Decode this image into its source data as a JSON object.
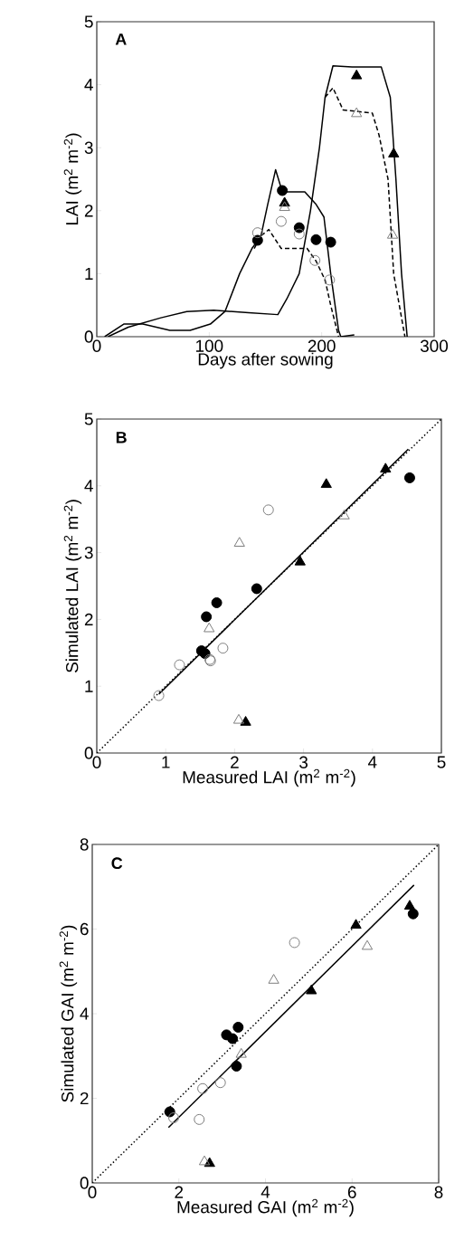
{
  "chart_data": [
    {
      "type": "line",
      "title": "A",
      "xlabel": "Days after sowing",
      "ylabel": "LAI (m$^{2}$ m$^{-2}$)",
      "xlim": [
        0,
        300
      ],
      "ylim": [
        0,
        5
      ],
      "xticks": [
        0,
        100,
        200,
        300
      ],
      "yticks": [
        0,
        1,
        2,
        3,
        4,
        5
      ],
      "series": [
        {
          "color": "#000000",
          "line_style": "solid",
          "marker": "none",
          "x": [
            7,
            24,
            41,
            65,
            83,
            101,
            114,
            127,
            138,
            146,
            152,
            159,
            165,
            185,
            195,
            202,
            208,
            215,
            217,
            229
          ],
          "values": [
            0,
            0.2,
            0.2,
            0.1,
            0.1,
            0.2,
            0.4,
            1.0,
            1.4,
            1.6,
            2.1,
            2.65,
            2.3,
            2.3,
            2.1,
            1.9,
            1.0,
            0.1,
            0,
            0.03
          ]
        },
        {
          "color": "#000000",
          "line_style": "dashed",
          "marker": "none",
          "x": [
            140,
            146,
            153,
            164,
            187,
            195,
            203,
            208,
            215
          ],
          "values": [
            1.4,
            1.6,
            1.7,
            1.4,
            1.4,
            1.2,
            0.9,
            0.5,
            0
          ]
        },
        {
          "color": "#000000",
          "line_style": "solid",
          "marker": "none",
          "x": [
            10,
            28,
            57,
            80,
            104,
            135,
            161,
            169,
            180,
            190,
            198,
            203,
            210,
            227,
            253,
            261,
            266,
            271,
            276
          ],
          "values": [
            0,
            0.15,
            0.3,
            0.4,
            0.42,
            0.38,
            0.35,
            0.6,
            1.0,
            2.0,
            3.0,
            3.8,
            4.3,
            4.28,
            4.28,
            3.8,
            2.5,
            1.0,
            0
          ]
        },
        {
          "color": "#000000",
          "line_style": "dashed",
          "marker": "none",
          "x": [
            203,
            210,
            219,
            245,
            251,
            259,
            264,
            274
          ],
          "values": [
            3.8,
            3.95,
            3.6,
            3.55,
            3.2,
            2.5,
            1.0,
            0
          ]
        },
        {
          "type": "scatter",
          "color": "#000000",
          "marker": "circle",
          "x": [
            143,
            165,
            180,
            195,
            208
          ],
          "values": [
            1.53,
            2.32,
            1.73,
            1.54,
            1.5
          ]
        },
        {
          "type": "scatter",
          "color": "#7f7f7f",
          "marker": "circle",
          "x": [
            143,
            164,
            180,
            194,
            207
          ],
          "values": [
            1.65,
            1.83,
            1.63,
            1.21,
            0.9
          ]
        },
        {
          "type": "scatter",
          "color": "#000000",
          "marker": "triangle",
          "x": [
            167,
            231,
            264
          ],
          "values": [
            2.12,
            4.14,
            2.9
          ]
        },
        {
          "type": "scatter",
          "color": "#7f7f7f",
          "marker": "triangle",
          "x": [
            167,
            231,
            263
          ],
          "values": [
            2.05,
            3.54,
            1.61
          ]
        }
      ]
    },
    {
      "type": "scatter",
      "title": "B",
      "xlabel": "Measured LAI (m$^{2}$ m$^{-2}$)",
      "ylabel": "Simulated LAI (m$^{2}$ m$^{-2}$)",
      "xlim": [
        0,
        5
      ],
      "ylim": [
        0,
        5
      ],
      "xticks": [
        0,
        1,
        2,
        3,
        4,
        5
      ],
      "yticks": [
        0,
        1,
        2,
        3,
        4,
        5
      ],
      "series": [
        {
          "type": "line",
          "color": "#000000",
          "line_style": "dotted",
          "marker": "none",
          "x": [
            0,
            5
          ],
          "values": [
            0,
            5
          ]
        },
        {
          "type": "line",
          "color": "#000000",
          "line_style": "solid",
          "marker": "none",
          "x": [
            0.9,
            4.52
          ],
          "values": [
            0.88,
            4.55
          ]
        },
        {
          "color": "#000000",
          "marker": "circle",
          "x": [
            1.59,
            1.74,
            2.32,
            1.52,
            1.57,
            4.54
          ],
          "values": [
            2.04,
            2.25,
            2.46,
            1.53,
            1.49,
            4.12
          ]
        },
        {
          "color": "#7f7f7f",
          "marker": "circle",
          "x": [
            2.49,
            1.83,
            1.2,
            1.64,
            1.65,
            0.9
          ],
          "values": [
            3.64,
            1.57,
            1.32,
            1.4,
            1.38,
            0.86
          ]
        },
        {
          "color": "#000000",
          "marker": "triangle",
          "x": [
            3.33,
            2.95,
            4.19,
            2.16
          ],
          "values": [
            4.02,
            2.86,
            4.25,
            0.46
          ]
        },
        {
          "color": "#7f7f7f",
          "marker": "triangle",
          "x": [
            2.07,
            1.63,
            3.59,
            2.06
          ],
          "values": [
            3.14,
            1.86,
            3.55,
            0.49
          ]
        }
      ]
    },
    {
      "type": "scatter",
      "title": "C",
      "xlabel": "Measured GAI (m$^{2}$ m$^{-2}$)",
      "ylabel": "Simulated GAI (m$^{2}$ m$^{-2}$)",
      "xlim": [
        0,
        8
      ],
      "ylim": [
        0,
        8
      ],
      "xticks": [
        0,
        2,
        4,
        6,
        8
      ],
      "yticks": [
        0,
        2,
        4,
        6,
        8
      ],
      "series": [
        {
          "type": "line",
          "color": "#000000",
          "line_style": "dotted",
          "marker": "none",
          "x": [
            0,
            8
          ],
          "values": [
            0,
            8
          ]
        },
        {
          "type": "line",
          "color": "#000000",
          "line_style": "solid",
          "marker": "none",
          "x": [
            1.76,
            7.43
          ],
          "values": [
            1.31,
            7.04
          ]
        },
        {
          "color": "#000000",
          "marker": "circle",
          "x": [
            1.79,
            3.1,
            3.24,
            3.37,
            3.33,
            7.41
          ],
          "values": [
            1.68,
            3.5,
            3.41,
            3.68,
            2.76,
            6.36
          ]
        },
        {
          "color": "#7f7f7f",
          "marker": "circle",
          "x": [
            1.88,
            2.47,
            2.55,
            2.96,
            4.67
          ],
          "values": [
            1.54,
            1.5,
            2.23,
            2.37,
            5.68
          ]
        },
        {
          "color": "#000000",
          "marker": "triangle",
          "x": [
            2.71,
            6.09,
            5.06,
            7.33
          ],
          "values": [
            0.46,
            6.09,
            4.54,
            6.54
          ]
        },
        {
          "color": "#7f7f7f",
          "marker": "triangle",
          "x": [
            2.59,
            3.44,
            4.19,
            6.35
          ],
          "values": [
            0.5,
            3.04,
            4.79,
            5.59
          ]
        }
      ]
    }
  ]
}
